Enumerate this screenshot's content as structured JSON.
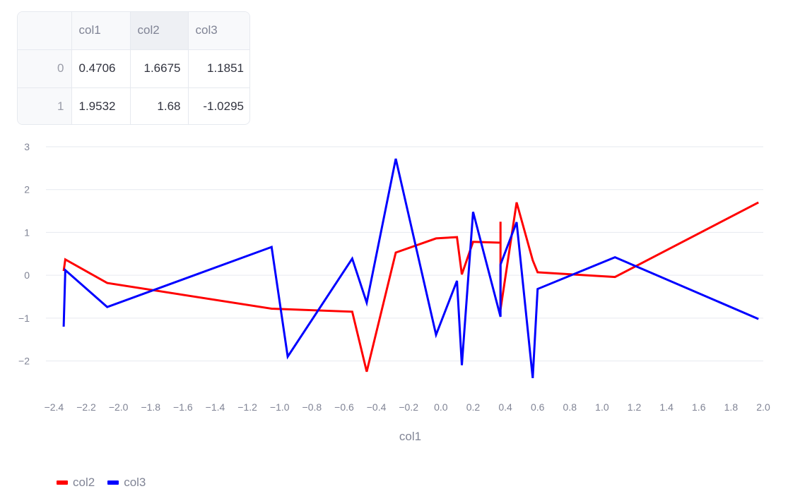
{
  "table": {
    "columns": [
      "",
      "col1",
      "col2",
      "col3"
    ],
    "rows": [
      [
        "0",
        "0.4706",
        "1.6675",
        "1.1851"
      ],
      [
        "1",
        "1.9532",
        "1.68",
        "-1.0295"
      ]
    ]
  },
  "chart_data": {
    "type": "line",
    "xlabel": "col1",
    "ylabel": "",
    "xlim": [
      -2.45,
      2.0
    ],
    "ylim": [
      -2.6,
      3.0
    ],
    "xticks": [
      -2.4,
      -2.2,
      -2.0,
      -1.8,
      -1.6,
      -1.4,
      -1.2,
      -1.0,
      -0.8,
      -0.6,
      -0.4,
      -0.2,
      0.0,
      0.2,
      0.4,
      0.6,
      0.8,
      1.0,
      1.2,
      1.4,
      1.6,
      1.8,
      2.0
    ],
    "xtick_labels": [
      "−2.4",
      "−2.2",
      "−2.0",
      "−1.8",
      "−1.6",
      "−1.4",
      "−1.2",
      "−1.0",
      "−0.8",
      "−0.6",
      "−0.4",
      "−0.2",
      "0.0",
      "0.2",
      "0.4",
      "0.6",
      "0.8",
      "1.0",
      "1.2",
      "1.4",
      "1.6",
      "1.8",
      "2.0"
    ],
    "yticks": [
      -2,
      -1,
      0,
      1,
      2,
      3
    ],
    "ytick_labels": [
      "−2",
      "−1",
      "0",
      "1",
      "2",
      "3"
    ],
    "grid": true,
    "legend_position": "bottom-left",
    "series": [
      {
        "name": "col2",
        "color": "#ff0000",
        "points": [
          [
            -2.34,
            0.1
          ],
          [
            -2.33,
            0.37
          ],
          [
            -2.07,
            -0.18
          ],
          [
            -1.05,
            -0.78
          ],
          [
            -0.55,
            -0.85
          ],
          [
            -0.46,
            -2.25
          ],
          [
            -0.28,
            0.53
          ],
          [
            -0.03,
            0.86
          ],
          [
            0.1,
            0.89
          ],
          [
            0.13,
            0.02
          ],
          [
            0.2,
            0.78
          ],
          [
            0.37,
            0.76
          ],
          [
            0.37,
            1.25
          ],
          [
            0.37,
            -0.8
          ],
          [
            0.47,
            1.7
          ],
          [
            0.57,
            0.35
          ],
          [
            0.6,
            0.07
          ],
          [
            1.08,
            -0.04
          ],
          [
            1.97,
            1.7
          ]
        ]
      },
      {
        "name": "col3",
        "color": "#0000ff",
        "points": [
          [
            -2.34,
            -1.2
          ],
          [
            -2.33,
            0.12
          ],
          [
            -2.07,
            -0.74
          ],
          [
            -1.05,
            0.66
          ],
          [
            -0.95,
            -1.9
          ],
          [
            -0.55,
            0.39
          ],
          [
            -0.46,
            -0.64
          ],
          [
            -0.28,
            2.72
          ],
          [
            -0.03,
            -1.39
          ],
          [
            0.1,
            -0.13
          ],
          [
            0.13,
            -2.1
          ],
          [
            0.2,
            1.48
          ],
          [
            0.37,
            -0.97
          ],
          [
            0.37,
            0.25
          ],
          [
            0.47,
            1.24
          ],
          [
            0.57,
            -2.4
          ],
          [
            0.6,
            -0.32
          ],
          [
            1.08,
            0.42
          ],
          [
            1.97,
            -1.02
          ]
        ]
      }
    ]
  }
}
